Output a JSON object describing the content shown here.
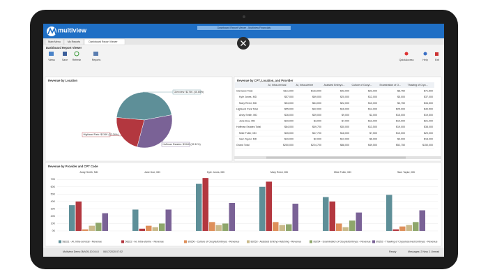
{
  "window": {
    "brand": "multiview",
    "title": "Dashboard Report Viewer - Multiview Financials"
  },
  "tabs": [
    "Main Menu",
    "My Reports",
    "Dashboard Report Viewer"
  ],
  "heading": "Dashboard Report Viewer",
  "toolbar": {
    "left": [
      "Views",
      "Save",
      "Refresh",
      "Reports"
    ],
    "right": [
      "QuickAccess",
      "Help",
      "Exit"
    ]
  },
  "chart_data": [
    {
      "type": "pie",
      "title": "Revenue by Location",
      "categories": [
        "Glenview",
        "Hoffman Estates",
        "Highland Park"
      ],
      "values": [
        45.65,
        32.11,
        22.24
      ],
      "value_labels": [
        "Glenview: $275K (45.65%)",
        "Hoffman Estates: $194K (32.11%)",
        "Highland Park: $134K (22.24%)"
      ],
      "colors": [
        "#5e8f98",
        "#7a6296",
        "#b3373f"
      ]
    },
    {
      "type": "bar",
      "title": "Revenue by Provider and CPT Code",
      "categories": [
        "Andy Smith, MD",
        "Jane Doe, MD",
        "Kyle Jones, MD",
        "Mary Reed, MD",
        "Mike Fuller, MD",
        "Sam Taylor, MD"
      ],
      "series": [
        {
          "name": "58321 - AI, Intra-cervical - Revenue",
          "color": "#5e8f98",
          "values": [
            35,
            29,
            64,
            60,
            46,
            49
          ]
        },
        {
          "name": "58322 - AI, Intra-uterine - Revenue",
          "color": "#b3373f",
          "values": [
            40,
            3,
            72,
            67,
            40,
            2
          ]
        },
        {
          "name": "89250 - Culture of Oocyte/Embryos - Revenue",
          "color": "#de8f5a",
          "values": [
            2,
            7,
            12,
            12,
            10,
            6
          ]
        },
        {
          "name": "89253 - Assisted Embryo Hatching - Revenue",
          "color": "#c9b98a",
          "values": [
            7,
            5,
            8,
            8,
            5,
            8
          ]
        },
        {
          "name": "89254 - Examination of Oocyte/Embryos - Revenue",
          "color": "#8ea66b",
          "values": [
            11,
            10,
            10,
            9,
            14,
            12
          ]
        },
        {
          "name": "89352 - Thawing of Cryopreserved Embryos - Revenue",
          "color": "#7a6296",
          "values": [
            24,
            29,
            38,
            37,
            25,
            28
          ]
        }
      ],
      "ylim": [
        0,
        75
      ],
      "yticks": [
        {
          "value": 0,
          "label": "0K"
        },
        {
          "value": 10,
          "label": "10K"
        },
        {
          "value": 20,
          "label": "20K"
        },
        {
          "value": 30,
          "label": "30K"
        },
        {
          "value": 40,
          "label": "40K"
        },
        {
          "value": 50,
          "label": "50K"
        },
        {
          "value": 60,
          "label": "60K"
        },
        {
          "value": 70,
          "label": "70K"
        }
      ],
      "grid": true
    }
  ],
  "table": {
    "title": "Revenue by CPT, Location, and Provider",
    "columns": [
      "AI, Intra-cervical",
      "AI, Intra-uterine",
      "Assisted Embryo...",
      "Culture of Oocyt...",
      "Examination of O...",
      "Thawing of Cryo..."
    ],
    "rows": [
      {
        "label": "Glenview Total",
        "cells": [
          "$111,000",
          "$133,000",
          "$42,000",
          "$22,000",
          "$8,750",
          "$71,500"
        ]
      },
      {
        "label": "Kyle Jones, MD",
        "cells": [
          "$57,000",
          "$69,000",
          "$20,000",
          "$12,000",
          "$5,000",
          "$37,000"
        ]
      },
      {
        "label": "Mary Reed, MD",
        "cells": [
          "$54,000",
          "$64,000",
          "$22,000",
          "$10,000",
          "$3,750",
          "$34,500"
        ]
      },
      {
        "label": "Highland Park Total",
        "cells": [
          "$55,000",
          "$42,000",
          "$16,000",
          "$14,000",
          "$25,000",
          "$40,500"
        ]
      },
      {
        "label": "Andy Smith, MD",
        "cells": [
          "$26,000",
          "$39,000",
          "$9,000",
          "$2,000",
          "$15,000",
          "$19,500"
        ]
      },
      {
        "label": "Jane Doe, MD",
        "cells": [
          "$29,000",
          "$3,000",
          "$7,000",
          "$12,000",
          "$10,000",
          "$21,000"
        ]
      },
      {
        "label": "Hoffman Estates Total",
        "cells": [
          "$84,000",
          "$49,700",
          "$30,000",
          "$13,500",
          "$19,000",
          "$38,000"
        ]
      },
      {
        "label": "Mike Fuller, MD",
        "cells": [
          "$35,000",
          "$47,700",
          "$18,000",
          "$7,500",
          "$10,000",
          "$20,000"
        ]
      },
      {
        "label": "Sam Taylor, MD",
        "cells": [
          "$49,000",
          "$2,000",
          "$12,000",
          "$6,000",
          "$9,000",
          "$18,000"
        ]
      },
      {
        "label": "Grand Total",
        "cells": [
          "$250,000",
          "$224,700",
          "$88,000",
          "$49,500",
          "$52,750",
          "$150,000"
        ]
      }
    ]
  },
  "status": {
    "left": [
      "Multiview Demo 3",
      "MV05-10.0.6.8",
      "06/17/2020 07:02"
    ],
    "ready": "Ready",
    "messages": "Messages: 2 New, 1 Unread"
  }
}
